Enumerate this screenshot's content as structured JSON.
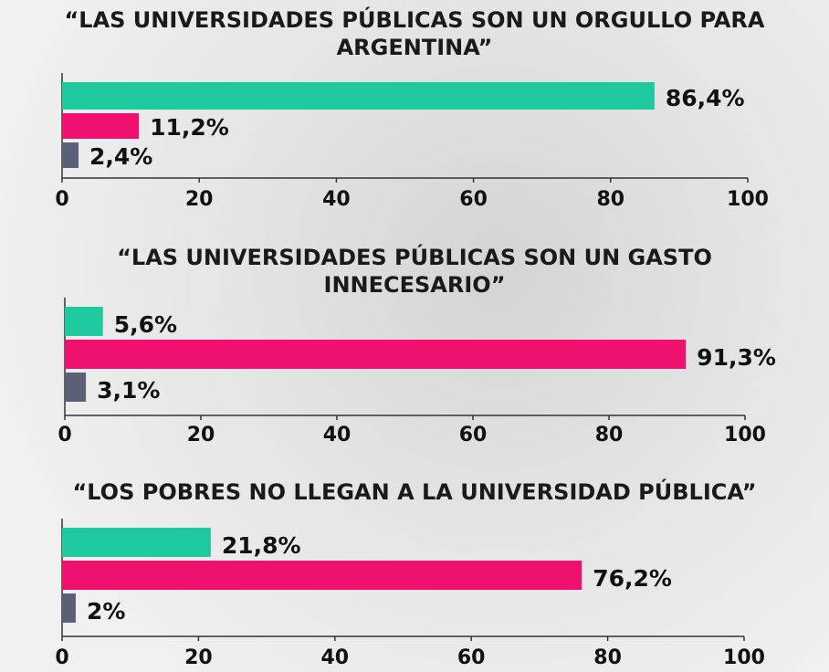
{
  "colors": {
    "teal": "#1ec9a0",
    "pink": "#ee1170",
    "slate": "#5a6075"
  },
  "chart_data": [
    {
      "type": "bar",
      "orientation": "horizontal",
      "title": "“LAS UNIVERSIDADES PÚBLICAS SON UN ORGULLO PARA ARGENTINA”",
      "title_lines": [
        "“LAS UNIVERSIDADES PÚBLICAS SON UN ORGULLO PARA",
        "ARGENTINA”"
      ],
      "values": [
        86.4,
        11.2,
        2.4
      ],
      "labels": [
        "86,4%",
        "11,2%",
        "2,4%"
      ],
      "xlim": [
        0,
        100
      ],
      "ticks": [
        "0",
        "20",
        "40",
        "60",
        "80",
        "100"
      ]
    },
    {
      "type": "bar",
      "orientation": "horizontal",
      "title": "“LAS UNIVERSIDADES PÚBLICAS SON UN GASTO INNECESARIO”",
      "title_lines": [
        "“LAS UNIVERSIDADES PÚBLICAS SON UN GASTO",
        "INNECESARIO”"
      ],
      "values": [
        5.6,
        91.3,
        3.1
      ],
      "labels": [
        "5,6%",
        "91,3%",
        "3,1%"
      ],
      "xlim": [
        0,
        100
      ],
      "ticks": [
        "0",
        "20",
        "40",
        "60",
        "80",
        "100"
      ]
    },
    {
      "type": "bar",
      "orientation": "horizontal",
      "title": "“LOS POBRES NO LLEGAN A LA UNIVERSIDAD PÚBLICA”",
      "title_lines": [
        "“LOS POBRES NO LLEGAN A LA UNIVERSIDAD PÚBLICA”"
      ],
      "values": [
        21.8,
        76.2,
        2
      ],
      "labels": [
        "21,8%",
        "76,2%",
        "2%"
      ],
      "xlim": [
        0,
        100
      ],
      "ticks": [
        "0",
        "20",
        "40",
        "60",
        "80",
        "100"
      ]
    }
  ]
}
